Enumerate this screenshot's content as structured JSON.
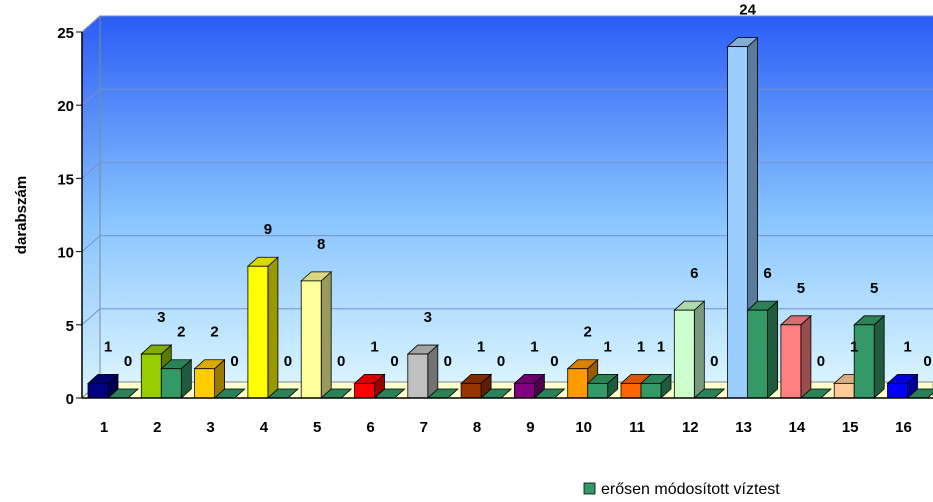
{
  "chart_data": {
    "type": "bar3d",
    "y_label": "darabszám",
    "categories": [
      "1",
      "2",
      "3",
      "4",
      "5",
      "6",
      "7",
      "8",
      "9",
      "10",
      "11",
      "12",
      "13",
      "14",
      "15",
      "16"
    ],
    "series": [
      {
        "colors": [
          "#000080",
          "#99cc00",
          "#ffcc00",
          "#ffff00",
          "#ffff99",
          "#ff0000",
          "#c0c0c0",
          "#993300",
          "#800080",
          "#ff9900",
          "#ff6600",
          "#ccffcc",
          "#99ccff",
          "#ff8080",
          "#ffcc99",
          "#0000ff"
        ],
        "values": [
          1,
          3,
          2,
          9,
          8,
          1,
          3,
          1,
          1,
          2,
          1,
          6,
          24,
          5,
          1,
          1
        ]
      },
      {
        "name": "erősen módosított víztest",
        "color": "#339966",
        "values": [
          0,
          2,
          0,
          0,
          0,
          0,
          0,
          0,
          0,
          1,
          1,
          0,
          6,
          0,
          5,
          0
        ]
      }
    ],
    "ylim": [
      0,
      25
    ],
    "yticks": [
      0,
      5,
      10,
      15,
      20,
      25
    ],
    "grid": true,
    "legend": "bottom-right"
  }
}
